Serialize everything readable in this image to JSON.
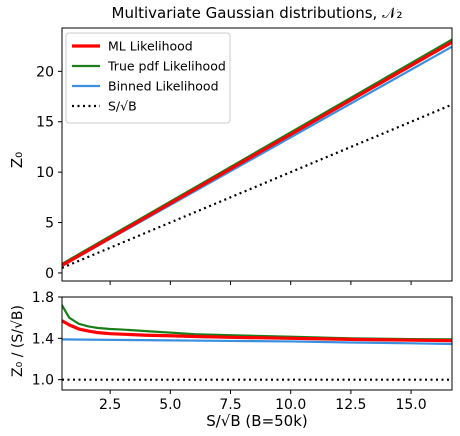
{
  "chart_data": [
    {
      "type": "line",
      "title": "Multivariate Gaussian distributions, 𝒩₂",
      "ylabel": "Z₀",
      "xlim": [
        0.5,
        16.7
      ],
      "ylim": [
        -0.8,
        24.3
      ],
      "yticks": [
        0,
        5,
        10,
        15,
        20
      ],
      "ytick_labels": [
        "0",
        "5",
        "10",
        "15",
        "20"
      ],
      "grid": false,
      "legend_position": "top-left",
      "series": [
        {
          "name": "ML Likelihood",
          "color": "#ff0000",
          "style": "solid",
          "width": 3.2,
          "x": [
            0.5,
            16.7
          ],
          "y": [
            0.75,
            22.9
          ]
        },
        {
          "name": "True pdf Likelihood",
          "color": "#1a7f1a",
          "style": "solid",
          "width": 2.2,
          "x": [
            0.5,
            16.7
          ],
          "y": [
            0.9,
            23.15
          ]
        },
        {
          "name": "Binned Likelihood",
          "color": "#3a8fe0",
          "style": "solid",
          "width": 2.2,
          "x": [
            0.5,
            16.7
          ],
          "y": [
            0.7,
            22.45
          ]
        },
        {
          "name": "S/√B",
          "color": "#000000",
          "style": "dotted",
          "width": 2.2,
          "x": [
            0.5,
            16.7
          ],
          "y": [
            0.5,
            16.7
          ]
        }
      ]
    },
    {
      "type": "line",
      "xlabel": "S/√B (B=50k)",
      "ylabel": "Z₀ / (S/√B)",
      "xlim": [
        0.5,
        16.7
      ],
      "ylim": [
        0.9,
        1.8
      ],
      "xticks": [
        2.5,
        5.0,
        7.5,
        10.0,
        12.5,
        15.0
      ],
      "xtick_labels": [
        "2.5",
        "5.0",
        "7.5",
        "10.0",
        "12.5",
        "15.0"
      ],
      "yticks": [
        1.0,
        1.4,
        1.8
      ],
      "ytick_labels": [
        "1.0",
        "1.4",
        "1.8"
      ],
      "grid": false,
      "series": [
        {
          "name": "ML Likelihood",
          "color": "#ff0000",
          "style": "solid",
          "width": 3.2,
          "x": [
            0.5,
            0.8,
            1.2,
            1.6,
            2.0,
            2.5,
            3.0,
            4.0,
            5.0,
            6.0,
            7.5,
            10.0,
            12.5,
            15.0,
            16.7
          ],
          "y": [
            1.57,
            1.53,
            1.49,
            1.47,
            1.455,
            1.445,
            1.44,
            1.43,
            1.425,
            1.418,
            1.41,
            1.4,
            1.39,
            1.382,
            1.378
          ]
        },
        {
          "name": "True pdf Likelihood",
          "color": "#1a7f1a",
          "style": "solid",
          "width": 2.2,
          "x": [
            0.5,
            0.8,
            1.2,
            1.6,
            2.0,
            2.5,
            3.0,
            4.0,
            5.0,
            6.0,
            7.5,
            10.0,
            12.5,
            15.0,
            16.7
          ],
          "y": [
            1.72,
            1.6,
            1.54,
            1.515,
            1.5,
            1.49,
            1.485,
            1.47,
            1.455,
            1.44,
            1.43,
            1.415,
            1.4,
            1.392,
            1.39
          ]
        },
        {
          "name": "Binned Likelihood",
          "color": "#3a8fe0",
          "style": "solid",
          "width": 2.2,
          "x": [
            0.5,
            2.5,
            5.0,
            7.5,
            10.0,
            12.5,
            15.0,
            16.7
          ],
          "y": [
            1.39,
            1.385,
            1.38,
            1.375,
            1.37,
            1.36,
            1.352,
            1.345
          ]
        },
        {
          "name": "S/√B",
          "color": "#000000",
          "style": "dotted",
          "width": 2.2,
          "x": [
            0.5,
            16.7
          ],
          "y": [
            1.0,
            1.0
          ]
        }
      ]
    }
  ]
}
